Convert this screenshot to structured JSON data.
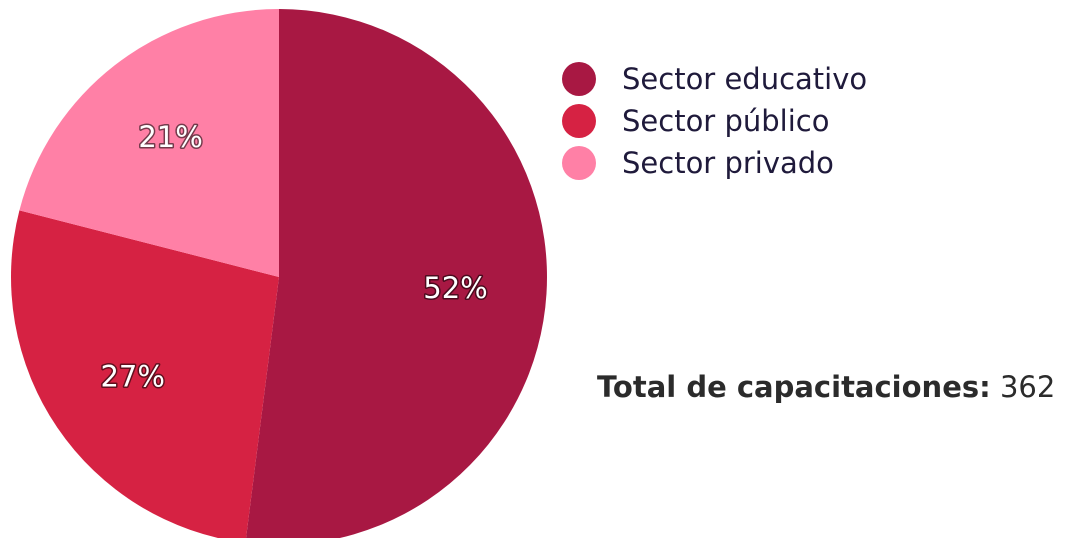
{
  "chart_data": {
    "type": "pie",
    "categories": [
      "Sector educativo",
      "Sector público",
      "Sector privado"
    ],
    "values": [
      52,
      27,
      21
    ],
    "labels": [
      "52%",
      "27%",
      "21%"
    ],
    "colors": [
      "#A81843",
      "#D62243",
      "#FF80A6"
    ],
    "legend_position": "right"
  },
  "legend": {
    "items": [
      {
        "label": "Sector educativo",
        "color": "#A81843"
      },
      {
        "label": "Sector público",
        "color": "#D62243"
      },
      {
        "label": "Sector privado",
        "color": "#FF80A6"
      }
    ]
  },
  "total": {
    "label": "Total de capacitaciones:",
    "value": "362"
  }
}
